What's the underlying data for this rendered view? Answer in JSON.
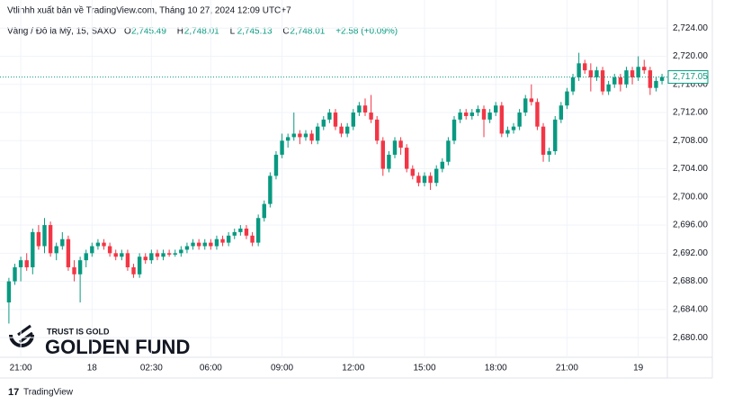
{
  "chart_data": {
    "type": "candlestick",
    "publisher": "Vtlinhh xuất bản về TradingView.com, Tháng 10 27, 2024 12:09 UTC+7",
    "symbol": "Vàng / Đô la Mỹ, 15, SAXO",
    "quote": [
      {
        "key": "O",
        "label": "2,745.49"
      },
      {
        "key": "H",
        "label": "2,748.01"
      },
      {
        "key": "L",
        "label": "2,745.13"
      },
      {
        "key": "C",
        "label": "2,748.01"
      },
      {
        "key": "",
        "label": "+2.58 (+0.09%)"
      }
    ],
    "up_color": "#089981",
    "down_color": "#f23645",
    "ylim": [
      2677.2,
      2728
    ],
    "xlim": [
      -1.5,
      110.9
    ],
    "yticks": [
      {
        "value": 2680,
        "label": "2,680.00"
      },
      {
        "value": 2684,
        "label": "2,684.00"
      },
      {
        "value": 2688,
        "label": "2,688.00"
      },
      {
        "value": 2692,
        "label": "2,692.00"
      },
      {
        "value": 2696,
        "label": "2,696.00"
      },
      {
        "value": 2700,
        "label": "2,700.00"
      },
      {
        "value": 2704,
        "label": "2,704.00"
      },
      {
        "value": 2708,
        "label": "2,708.00"
      },
      {
        "value": 2712,
        "label": "2,712.00"
      },
      {
        "value": 2716,
        "label": "2,716.00"
      },
      {
        "value": 2720,
        "label": "2,720.00"
      },
      {
        "value": 2724,
        "label": "2,724.00"
      }
    ],
    "xticks": [
      {
        "value": 2,
        "label": "21:00"
      },
      {
        "value": 14,
        "label": "18"
      },
      {
        "value": 24,
        "label": "02:30"
      },
      {
        "value": 34,
        "label": "06:00"
      },
      {
        "value": 46,
        "label": "09:00"
      },
      {
        "value": 58,
        "label": "12:00"
      },
      {
        "value": 70,
        "label": "15:00"
      },
      {
        "value": 82,
        "label": "18:00"
      },
      {
        "value": 94,
        "label": "21:00"
      },
      {
        "value": 106,
        "label": "19"
      }
    ],
    "last_price": {
      "value": 2717.05,
      "label": "2,717.05"
    },
    "ohlc": [
      [
        2685,
        2688.5,
        2682,
        2688
      ],
      [
        2688,
        2690.5,
        2687.5,
        2690
      ],
      [
        2690,
        2691.5,
        2688,
        2691
      ],
      [
        2691,
        2692,
        2689.5,
        2690
      ],
      [
        2690,
        2695.5,
        2689,
        2695
      ],
      [
        2695,
        2696,
        2692.5,
        2693
      ],
      [
        2693,
        2697,
        2692,
        2696
      ],
      [
        2696,
        2696.5,
        2691.5,
        2692
      ],
      [
        2692,
        2693.5,
        2691,
        2693
      ],
      [
        2693,
        2695,
        2692.5,
        2694
      ],
      [
        2694,
        2694.5,
        2689.5,
        2690
      ],
      [
        2690,
        2691,
        2688,
        2689
      ],
      [
        2689,
        2691.5,
        2685,
        2691
      ],
      [
        2691,
        2692.5,
        2690,
        2692
      ],
      [
        2692,
        2693.5,
        2691.5,
        2693
      ],
      [
        2693,
        2694,
        2692.5,
        2693.5
      ],
      [
        2693.5,
        2694,
        2692.5,
        2693
      ],
      [
        2693,
        2693.5,
        2691.5,
        2692
      ],
      [
        2692,
        2692.5,
        2691,
        2691.5
      ],
      [
        2691.5,
        2692.5,
        2691,
        2692
      ],
      [
        2692,
        2692.5,
        2689.5,
        2690
      ],
      [
        2690,
        2690.5,
        2688.5,
        2689
      ],
      [
        2689,
        2692,
        2688.5,
        2691.5
      ],
      [
        2691.5,
        2692,
        2690.5,
        2691
      ],
      [
        2691,
        2692.5,
        2690.5,
        2692
      ],
      [
        2692,
        2692.5,
        2691,
        2691.5
      ],
      [
        2691.5,
        2692.5,
        2691,
        2692
      ],
      [
        2692,
        2692.5,
        2691.5,
        2691.8
      ],
      [
        2691.8,
        2692.5,
        2691.5,
        2692
      ],
      [
        2692,
        2693,
        2691.5,
        2692.5
      ],
      [
        2692.5,
        2693.5,
        2692,
        2693
      ],
      [
        2693,
        2694,
        2692.5,
        2693.5
      ],
      [
        2693.5,
        2694,
        2692.5,
        2693
      ],
      [
        2693,
        2694,
        2692.5,
        2693.5
      ],
      [
        2693.5,
        2694,
        2692.5,
        2693
      ],
      [
        2693,
        2694.5,
        2692.5,
        2694
      ],
      [
        2694,
        2694.5,
        2693,
        2693.5
      ],
      [
        2693.5,
        2695,
        2693,
        2694.5
      ],
      [
        2694.5,
        2695.5,
        2694,
        2695
      ],
      [
        2695,
        2696,
        2694.5,
        2695.5
      ],
      [
        2695.5,
        2696,
        2694,
        2694.5
      ],
      [
        2694.5,
        2695,
        2693,
        2693.5
      ],
      [
        2693.5,
        2697.5,
        2693,
        2697
      ],
      [
        2697,
        2699.5,
        2696.5,
        2699
      ],
      [
        2699,
        2703.5,
        2698.5,
        2703
      ],
      [
        2703,
        2706.5,
        2702.5,
        2706
      ],
      [
        2706,
        2709,
        2705.5,
        2708
      ],
      [
        2708,
        2709,
        2707,
        2708.5
      ],
      [
        2708.5,
        2712,
        2708,
        2709
      ],
      [
        2709,
        2709.5,
        2707.5,
        2708.5
      ],
      [
        2708.5,
        2709.5,
        2708,
        2709
      ],
      [
        2709,
        2709.5,
        2707.5,
        2708
      ],
      [
        2708,
        2710.5,
        2707.5,
        2710
      ],
      [
        2710,
        2711.5,
        2709.5,
        2711
      ],
      [
        2711,
        2712.5,
        2710.5,
        2712
      ],
      [
        2712,
        2712.5,
        2709.5,
        2710
      ],
      [
        2710,
        2710.5,
        2708.5,
        2709
      ],
      [
        2709,
        2710.5,
        2708.5,
        2710
      ],
      [
        2710,
        2712.5,
        2709.5,
        2712
      ],
      [
        2712,
        2713.5,
        2711.5,
        2713
      ],
      [
        2713,
        2714,
        2711.5,
        2712
      ],
      [
        2712,
        2714.5,
        2710.5,
        2711
      ],
      [
        2711,
        2711.5,
        2707.5,
        2708
      ],
      [
        2708,
        2708.5,
        2703,
        2704
      ],
      [
        2704,
        2706.5,
        2703.5,
        2706
      ],
      [
        2706,
        2708.5,
        2705.5,
        2708
      ],
      [
        2708,
        2708.5,
        2706,
        2707
      ],
      [
        2707,
        2707.5,
        2703.5,
        2704
      ],
      [
        2704,
        2704.5,
        2702.5,
        2703
      ],
      [
        2703,
        2703.5,
        2701.5,
        2702
      ],
      [
        2702,
        2703.5,
        2701.5,
        2703
      ],
      [
        2703,
        2703.5,
        2701,
        2702
      ],
      [
        2702,
        2704.5,
        2701.5,
        2704
      ],
      [
        2704,
        2705.5,
        2703.5,
        2705
      ],
      [
        2705,
        2708.5,
        2704.5,
        2708
      ],
      [
        2708,
        2711.5,
        2707.5,
        2711
      ],
      [
        2711,
        2712.5,
        2710.5,
        2712
      ],
      [
        2712,
        2712.5,
        2711,
        2711.5
      ],
      [
        2711.5,
        2712.5,
        2711,
        2712
      ],
      [
        2712,
        2713,
        2711.5,
        2712.5
      ],
      [
        2712.5,
        2713,
        2708.5,
        2711
      ],
      [
        2711,
        2712.5,
        2710.5,
        2712
      ],
      [
        2712,
        2713.5,
        2711.5,
        2713
      ],
      [
        2713,
        2713.5,
        2708.5,
        2709
      ],
      [
        2709,
        2710,
        2708.5,
        2709.5
      ],
      [
        2709.5,
        2710.5,
        2709,
        2710
      ],
      [
        2710,
        2712.5,
        2709.5,
        2712
      ],
      [
        2712,
        2714.5,
        2711.5,
        2714
      ],
      [
        2714,
        2716,
        2713,
        2713.5
      ],
      [
        2713.5,
        2714,
        2709.5,
        2710
      ],
      [
        2710,
        2710.5,
        2705,
        2706
      ],
      [
        2706,
        2707,
        2705,
        2706.5
      ],
      [
        2706.5,
        2711.5,
        2706,
        2711
      ],
      [
        2711,
        2713.5,
        2710.5,
        2713
      ],
      [
        2713,
        2715.5,
        2712.5,
        2715
      ],
      [
        2715,
        2717.5,
        2714.5,
        2717
      ],
      [
        2717,
        2720.5,
        2716.5,
        2719
      ],
      [
        2719,
        2719.5,
        2717.5,
        2718
      ],
      [
        2718,
        2719,
        2715,
        2717
      ],
      [
        2717,
        2718.5,
        2716.5,
        2718
      ],
      [
        2718,
        2718.5,
        2714.5,
        2715
      ],
      [
        2715,
        2716.5,
        2714.5,
        2716
      ],
      [
        2716,
        2717.5,
        2715.5,
        2717
      ],
      [
        2717,
        2717.5,
        2715,
        2716
      ],
      [
        2716,
        2718.5,
        2715.5,
        2718
      ],
      [
        2718,
        2718.5,
        2716,
        2717
      ],
      [
        2717,
        2720,
        2716.5,
        2718.5
      ],
      [
        2718.5,
        2719.5,
        2717.5,
        2718
      ],
      [
        2718,
        2718.5,
        2714.5,
        2715.5
      ],
      [
        2715.5,
        2717,
        2715,
        2716.5
      ],
      [
        2716.5,
        2717.5,
        2716,
        2717.05
      ]
    ]
  },
  "watermark": {
    "slogan": "TRUST IS GOLD",
    "brand": "GOLDEN FUND"
  },
  "footer": {
    "brand": "TradingView"
  }
}
